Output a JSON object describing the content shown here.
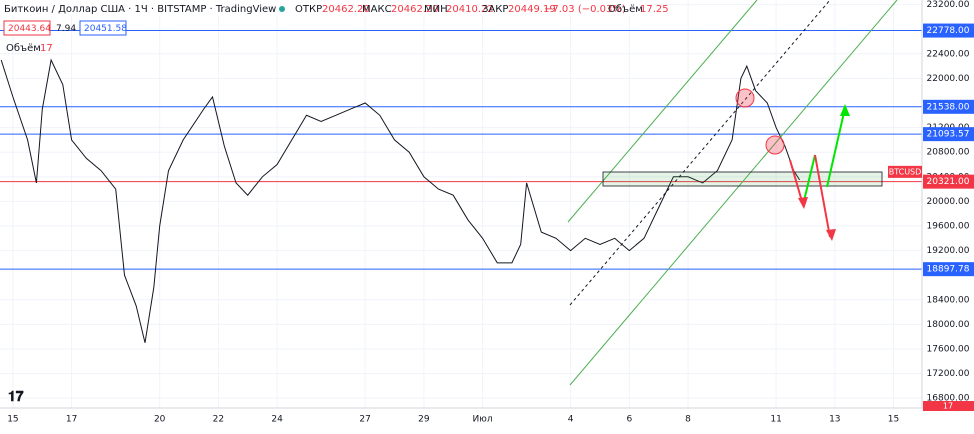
{
  "chart_data": {
    "type": "line",
    "header": {
      "symbol": "Биткоин / Доллар США · 1Ч · BITSTAMP · TradingView",
      "open_label": "ОТКР",
      "open": "20462.20",
      "high_label": "МАКС",
      "high": "20462.20",
      "low_label": "МИН",
      "low": "20410.22",
      "close_label": "ЗАКР",
      "close": "20449.19",
      "change": "−7.03 (−0.03%)",
      "volume_label": "Объём",
      "volume": "17.25",
      "bid": "20443.64",
      "spread": "7.94",
      "ask": "20451.58",
      "volume_pane_label": "Объём",
      "volume_pane_value": "17"
    },
    "symbol_tag": "BTCUSD",
    "volume_tag": "17",
    "color": "#131722",
    "xlim": [
      -0.44,
      30.97
    ],
    "ylim": [
      16640,
      23275
    ],
    "grid": true,
    "xticks": [
      {
        "value": 0,
        "label": "15"
      },
      {
        "value": 2,
        "label": "17"
      },
      {
        "value": 5,
        "label": "20"
      },
      {
        "value": 7,
        "label": "22"
      },
      {
        "value": 9,
        "label": "24"
      },
      {
        "value": 12,
        "label": "27"
      },
      {
        "value": 14,
        "label": "29"
      },
      {
        "value": 16,
        "label": "Июл"
      },
      {
        "value": 19,
        "label": "4"
      },
      {
        "value": 21,
        "label": "6"
      },
      {
        "value": 23,
        "label": "8"
      },
      {
        "value": 26,
        "label": "11"
      },
      {
        "value": 28,
        "label": "13"
      },
      {
        "value": 30,
        "label": "15"
      }
    ],
    "yticks": [
      {
        "value": 23200,
        "label": "23200.00"
      },
      {
        "value": 22400,
        "label": "22400.00"
      },
      {
        "value": 22000,
        "label": "22000.00"
      },
      {
        "value": 21200,
        "label": "21200.00"
      },
      {
        "value": 20800,
        "label": "20800.00"
      },
      {
        "value": 20400,
        "label": "20400.00"
      },
      {
        "value": 20000,
        "label": "20000.00"
      },
      {
        "value": 19600,
        "label": "19600.00"
      },
      {
        "value": 19200,
        "label": "19200.00"
      },
      {
        "value": 18400,
        "label": "18400.00"
      },
      {
        "value": 18000,
        "label": "18000.00"
      },
      {
        "value": 17600,
        "label": "17600.00"
      },
      {
        "value": 17200,
        "label": "17200.00"
      },
      {
        "value": 16800,
        "label": "16800.00"
      }
    ],
    "levels": [
      {
        "value": 22778,
        "label": "22778.00",
        "color": "#2962ff"
      },
      {
        "value": 21538,
        "label": "21538.00",
        "color": "#2962ff"
      },
      {
        "value": 21093.57,
        "label": "21093.57",
        "color": "#2962ff"
      },
      {
        "value": 20321,
        "label": "20321.00",
        "color": "#f23645"
      },
      {
        "value": 18897.78,
        "label": "18897.78",
        "color": "#2962ff"
      }
    ],
    "x": [
      -0.4,
      0,
      0.5,
      0.8,
      1,
      1.3,
      1.7,
      2,
      2.5,
      3,
      3.5,
      3.8,
      4.2,
      4.5,
      4.8,
      5,
      5.3,
      5.8,
      6.5,
      6.8,
      7.2,
      7.6,
      8,
      8.5,
      9,
      9.5,
      10,
      10.5,
      11,
      11.5,
      12,
      12.5,
      13,
      13.5,
      14,
      14.5,
      15,
      15.5,
      16,
      16.5,
      17,
      17.3,
      17.5,
      18,
      18.5,
      19,
      19.5,
      20,
      20.5,
      21,
      21.5,
      22,
      22.5,
      23,
      23.5,
      24,
      24.5,
      24.8,
      25,
      25.3,
      25.7,
      26,
      26.3,
      26.6,
      26.8
    ],
    "values": [
      22300,
      21700,
      21000,
      20300,
      21500,
      22300,
      21900,
      21000,
      20700,
      20500,
      20200,
      18800,
      18300,
      17700,
      18600,
      19600,
      20500,
      21000,
      21500,
      21700,
      20900,
      20300,
      20100,
      20400,
      20600,
      21000,
      21400,
      21300,
      21400,
      21500,
      21600,
      21400,
      21000,
      20800,
      20400,
      20200,
      20100,
      19700,
      19400,
      19000,
      19000,
      19300,
      20300,
      19500,
      19400,
      19200,
      19400,
      19300,
      19400,
      19200,
      19400,
      19900,
      20400,
      20400,
      20300,
      20500,
      21000,
      22000,
      22200,
      21800,
      21600,
      21200,
      20900,
      20500,
      20350
    ]
  }
}
